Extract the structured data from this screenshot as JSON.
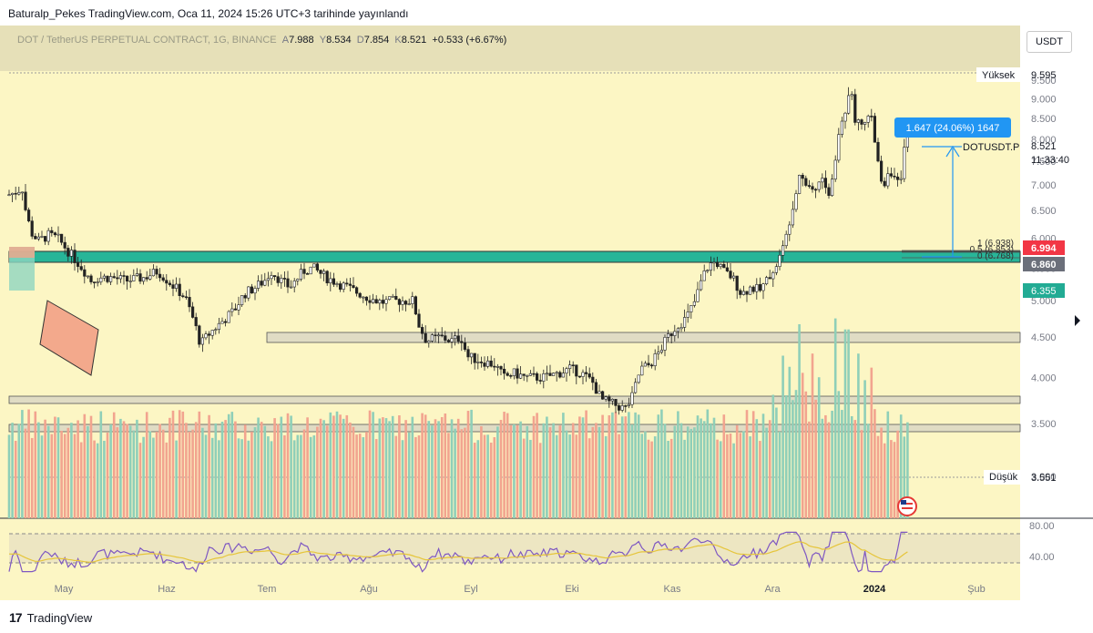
{
  "header": {
    "published": "Baturalp_Pekes TradingView.com, Oca 11, 2024 15:26 UTC+3 tarihinde yayınlandı"
  },
  "legend": {
    "symbol": "DOT / TetherUS PERPETUAL CONTRACT, 1G, BINANCE",
    "open_label": "A",
    "open": "7.988",
    "high_label": "Y",
    "high": "8.534",
    "low_label": "D",
    "low": "7.854",
    "close_label": "K",
    "close": "8.521",
    "change": "+0.533 (+6.67%)"
  },
  "currency_button": "USDT",
  "price_axis": {
    "ticks": [
      "9.500",
      "9.000",
      "8.500",
      "8.000",
      "7.500",
      "7.000",
      "6.500",
      "6.000",
      "5.500",
      "5.000",
      "4.500",
      "4.000",
      "3.500",
      "3.000"
    ],
    "high_label": "Yüksek",
    "high_value": "9.595",
    "low_label": "Düşük",
    "low_value": "3.551",
    "last_price": "8.521",
    "countdown": "11:33:40",
    "symbol_tag": "DOTUSDT.P",
    "level_red": "6.994",
    "level_gray": "6.860",
    "level_teal": "6.355"
  },
  "rsi_axis": {
    "ticks": [
      "80.00",
      "40.00"
    ]
  },
  "time_axis": {
    "labels": [
      "May",
      "Haz",
      "Tem",
      "Ağu",
      "Eyl",
      "Eki",
      "Kas",
      "Ara",
      "2024",
      "Şub"
    ]
  },
  "measure": {
    "label": "1.647 (24.06%) 1647"
  },
  "fib": {
    "l1": "1 (6.938)",
    "l05": "0.5 (6.853)",
    "l0": "0 (6.768)"
  },
  "brand": "TradingView",
  "colors": {
    "up": "#26a69a",
    "down": "#ef5350",
    "zone": "#27b598",
    "measure": "#2196f3",
    "rsi": "#7e57c2"
  },
  "chart_data": {
    "type": "candlestick",
    "title": "DOT / TetherUS PERPETUAL CONTRACT, 1G, BINANCE",
    "x_labels": [
      "May",
      "Haz",
      "Tem",
      "Ağu",
      "Eyl",
      "Eki",
      "Kas",
      "Ara",
      "2024",
      "Şub"
    ],
    "ylim": [
      3.0,
      9.7
    ],
    "scale": "log",
    "path": [
      [
        5,
        6.95
      ],
      [
        10,
        6.8
      ],
      [
        18,
        6.85
      ],
      [
        22,
        6.9
      ],
      [
        26,
        6.95
      ],
      [
        30,
        6.5
      ],
      [
        36,
        6.1
      ],
      [
        44,
        5.95
      ],
      [
        55,
        6.05
      ],
      [
        65,
        6.0
      ],
      [
        78,
        5.75
      ],
      [
        92,
        5.5
      ],
      [
        102,
        5.3
      ],
      [
        110,
        5.35
      ],
      [
        125,
        5.35
      ],
      [
        140,
        5.3
      ],
      [
        160,
        5.35
      ],
      [
        175,
        5.45
      ],
      [
        190,
        5.25
      ],
      [
        205,
        5.05
      ],
      [
        215,
        4.7
      ],
      [
        222,
        4.4
      ],
      [
        232,
        4.55
      ],
      [
        245,
        4.7
      ],
      [
        258,
        4.85
      ],
      [
        270,
        5.1
      ],
      [
        282,
        5.2
      ],
      [
        292,
        5.3
      ],
      [
        300,
        5.45
      ],
      [
        310,
        5.3
      ],
      [
        320,
        5.2
      ],
      [
        335,
        5.45
      ],
      [
        345,
        5.5
      ],
      [
        360,
        5.35
      ],
      [
        375,
        5.25
      ],
      [
        390,
        5.15
      ],
      [
        405,
        5.05
      ],
      [
        420,
        4.98
      ],
      [
        440,
        5.0
      ],
      [
        455,
        5.0
      ],
      [
        462,
        4.65
      ],
      [
        470,
        4.45
      ],
      [
        485,
        4.5
      ],
      [
        498,
        4.45
      ],
      [
        508,
        4.5
      ],
      [
        515,
        4.25
      ],
      [
        530,
        4.2
      ],
      [
        545,
        4.15
      ],
      [
        555,
        4.0
      ],
      [
        565,
        4.05
      ],
      [
        580,
        4.0
      ],
      [
        600,
        4.0
      ],
      [
        615,
        4.05
      ],
      [
        628,
        4.1
      ],
      [
        640,
        4.05
      ],
      [
        652,
        3.95
      ],
      [
        662,
        3.75
      ],
      [
        675,
        3.7
      ],
      [
        688,
        3.65
      ],
      [
        695,
        3.75
      ],
      [
        705,
        4.1
      ],
      [
        715,
        4.15
      ],
      [
        725,
        4.3
      ],
      [
        735,
        4.5
      ],
      [
        745,
        4.65
      ],
      [
        755,
        4.75
      ],
      [
        765,
        5.0
      ],
      [
        773,
        5.35
      ],
      [
        780,
        5.55
      ],
      [
        788,
        5.6
      ],
      [
        796,
        5.45
      ],
      [
        806,
        5.35
      ],
      [
        816,
        5.1
      ],
      [
        826,
        5.2
      ],
      [
        836,
        5.15
      ],
      [
        846,
        5.35
      ],
      [
        856,
        5.6
      ],
      [
        864,
        5.95
      ],
      [
        872,
        6.6
      ],
      [
        880,
        7.3
      ],
      [
        888,
        7.0
      ],
      [
        896,
        6.9
      ],
      [
        905,
        7.15
      ],
      [
        912,
        6.75
      ],
      [
        918,
        7.4
      ],
      [
        924,
        8.3
      ],
      [
        930,
        8.7
      ],
      [
        936,
        9.4
      ],
      [
        940,
        8.5
      ],
      [
        946,
        8.55
      ],
      [
        952,
        8.3
      ],
      [
        958,
        8.6
      ],
      [
        965,
        7.5
      ],
      [
        972,
        6.95
      ],
      [
        978,
        7.4
      ],
      [
        984,
        7.1
      ],
      [
        990,
        6.95
      ],
      [
        996,
        7.95
      ],
      [
        1000,
        8.5
      ]
    ],
    "volume_peaks": [
      [
        877,
        4.67
      ],
      [
        918,
        4.75
      ],
      [
        930,
        4.6
      ]
    ],
    "rsi": {
      "ticks": [
        80,
        40
      ]
    }
  }
}
